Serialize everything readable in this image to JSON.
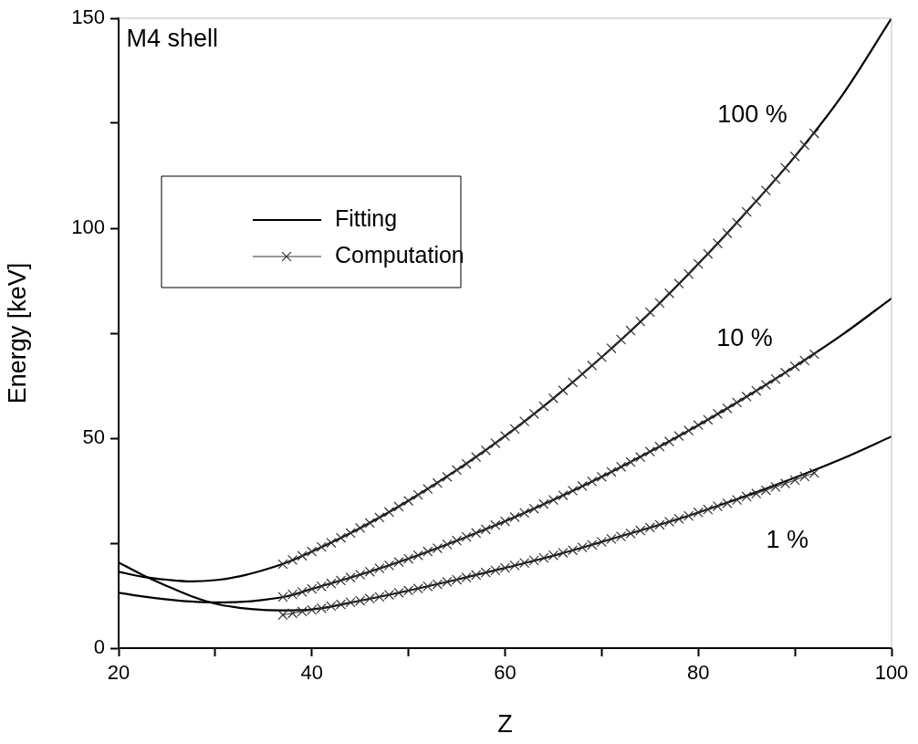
{
  "chart_data": {
    "type": "line",
    "xlabel": "Z",
    "ylabel": "Energy [keV]",
    "xlim": [
      20,
      100
    ],
    "xticks": [
      20,
      {
        "value": 30,
        "label": null
      },
      40,
      {
        "value": 50,
        "label": null
      },
      60,
      {
        "value": 70,
        "label": null
      },
      80,
      {
        "value": 90,
        "label": null
      },
      100
    ],
    "ylim": [
      0,
      150
    ],
    "yticks": [
      0,
      {
        "value": 25,
        "label": null
      },
      50,
      {
        "value": 75,
        "label": null
      },
      100,
      {
        "value": 125,
        "label": null
      },
      150
    ],
    "grid": false,
    "legend": "top left",
    "annotations": [
      "M4 shell",
      "100 %",
      "10 %",
      "1 %"
    ],
    "series": [
      {
        "name": "Fitting",
        "color": "#000000",
        "marker": "none",
        "line_style": "solid",
        "x": [
          20,
          22.5,
          25,
          27.5,
          30,
          32.5,
          35,
          37.5,
          40,
          45,
          50,
          55,
          60,
          65,
          70,
          75,
          80,
          85,
          90,
          95,
          100
        ],
        "values": [
          20.4,
          17.4,
          14.8,
          12.4,
          10.6,
          9.6,
          9.1,
          9.0,
          9.2,
          11.3,
          13.7,
          16.3,
          19.1,
          22.0,
          25.3,
          28.7,
          32.3,
          36.3,
          40.6,
          45.2,
          50.4
        ]
      },
      {
        "color": "#000000",
        "marker": "none",
        "line_style": "solid",
        "x": [
          20,
          22.5,
          25,
          27.5,
          30,
          32.5,
          35,
          37.5,
          40,
          45,
          50,
          55,
          60,
          65,
          70,
          75,
          80,
          85,
          90,
          95,
          100
        ],
        "values": [
          13.2,
          12.3,
          11.6,
          11.1,
          10.9,
          11.0,
          11.5,
          12.4,
          14.1,
          17.5,
          21.3,
          25.6,
          30.2,
          35.3,
          40.8,
          46.8,
          53.1,
          59.9,
          67.1,
          74.8,
          83.3
        ]
      },
      {
        "color": "#000000",
        "marker": "none",
        "line_style": "solid",
        "x": [
          20,
          22.5,
          25,
          27.5,
          30,
          32.5,
          35,
          37.5,
          40,
          45,
          50,
          55,
          60,
          65,
          70,
          75,
          80,
          85,
          90,
          95,
          100
        ],
        "values": [
          18.2,
          17.0,
          16.3,
          15.9,
          16.2,
          17.1,
          18.6,
          20.5,
          23.0,
          28.6,
          35.1,
          42.4,
          50.5,
          59.5,
          69.3,
          79.9,
          91.5,
          103.9,
          117.1,
          132.0,
          150
        ]
      },
      {
        "name": "Computation",
        "color": "#303030",
        "marker": "cross",
        "line_style": "solid",
        "x": [
          37,
          38,
          39,
          40,
          41,
          42,
          43,
          44,
          45,
          46,
          47,
          48,
          49,
          50,
          51,
          52,
          53,
          54,
          55,
          56,
          57,
          58,
          59,
          60,
          61,
          62,
          63,
          64,
          65,
          66,
          67,
          68,
          69,
          70,
          71,
          72,
          73,
          74,
          75,
          76,
          77,
          78,
          79,
          80,
          81,
          82,
          83,
          84,
          85,
          86,
          87,
          88,
          89,
          90,
          91,
          92
        ],
        "values": [
          7.9,
          8.3,
          8.7,
          9.1,
          9.5,
          10.0,
          10.4,
          10.9,
          11.3,
          11.8,
          12.2,
          12.7,
          13.2,
          13.7,
          14.2,
          14.7,
          15.2,
          15.8,
          16.3,
          16.8,
          17.4,
          18.0,
          18.5,
          19.1,
          19.7,
          20.3,
          20.9,
          21.5,
          22.1,
          22.7,
          23.3,
          24.0,
          24.6,
          25.3,
          26.0,
          26.6,
          27.3,
          28.0,
          28.7,
          29.4,
          30.1,
          30.8,
          31.5,
          32.3,
          33.0,
          33.8,
          34.5,
          35.3,
          36.1,
          36.8,
          37.6,
          38.4,
          39.2,
          40.0,
          40.9,
          41.7
        ]
      },
      {
        "color": "#303030",
        "marker": "cross",
        "line_style": "solid",
        "x": [
          37,
          38,
          39,
          40,
          41,
          42,
          43,
          44,
          45,
          46,
          47,
          48,
          49,
          50,
          51,
          52,
          53,
          54,
          55,
          56,
          57,
          58,
          59,
          60,
          61,
          62,
          63,
          64,
          65,
          66,
          67,
          68,
          69,
          70,
          71,
          72,
          73,
          74,
          75,
          76,
          77,
          78,
          79,
          80,
          81,
          82,
          83,
          84,
          85,
          86,
          87,
          88,
          89,
          90,
          91,
          92
        ],
        "values": [
          12.2,
          12.8,
          13.4,
          14.1,
          14.7,
          15.4,
          16.1,
          16.8,
          17.5,
          18.2,
          19.0,
          19.7,
          20.5,
          21.3,
          22.1,
          23.0,
          23.8,
          24.7,
          25.6,
          26.5,
          27.4,
          28.3,
          29.3,
          30.2,
          31.2,
          32.2,
          33.2,
          34.3,
          35.3,
          36.4,
          37.5,
          38.6,
          39.7,
          40.8,
          42.0,
          43.2,
          44.3,
          45.5,
          46.8,
          48.0,
          49.2,
          50.5,
          51.8,
          53.1,
          54.4,
          55.8,
          57.1,
          58.5,
          59.9,
          61.3,
          62.7,
          64.1,
          65.6,
          67.1,
          68.5,
          70.0
        ]
      },
      {
        "color": "#303030",
        "marker": "cross",
        "line_style": "solid",
        "x": [
          37,
          38,
          39,
          40,
          41,
          42,
          43,
          44,
          45,
          46,
          47,
          48,
          49,
          50,
          51,
          52,
          53,
          54,
          55,
          56,
          57,
          58,
          59,
          60,
          61,
          62,
          63,
          64,
          65,
          66,
          67,
          68,
          69,
          70,
          71,
          72,
          73,
          74,
          75,
          76,
          77,
          78,
          79,
          80,
          81,
          82,
          83,
          84,
          85,
          86,
          87,
          88,
          89,
          90,
          91,
          92
        ],
        "values": [
          20.0,
          21.0,
          22.0,
          23.0,
          24.1,
          25.1,
          26.3,
          27.4,
          28.6,
          29.8,
          31.1,
          32.4,
          33.7,
          35.1,
          36.5,
          37.9,
          39.3,
          40.8,
          42.4,
          43.9,
          45.5,
          47.1,
          48.8,
          50.5,
          52.2,
          54.0,
          55.8,
          57.6,
          59.5,
          61.4,
          63.3,
          65.3,
          67.3,
          69.3,
          71.4,
          73.5,
          75.6,
          77.8,
          80.0,
          82.2,
          84.5,
          86.8,
          89.1,
          91.5,
          93.9,
          96.4,
          98.8,
          101.3,
          103.9,
          106.4,
          109.0,
          111.7,
          114.4,
          117.1,
          119.8,
          122.6
        ]
      }
    ]
  }
}
